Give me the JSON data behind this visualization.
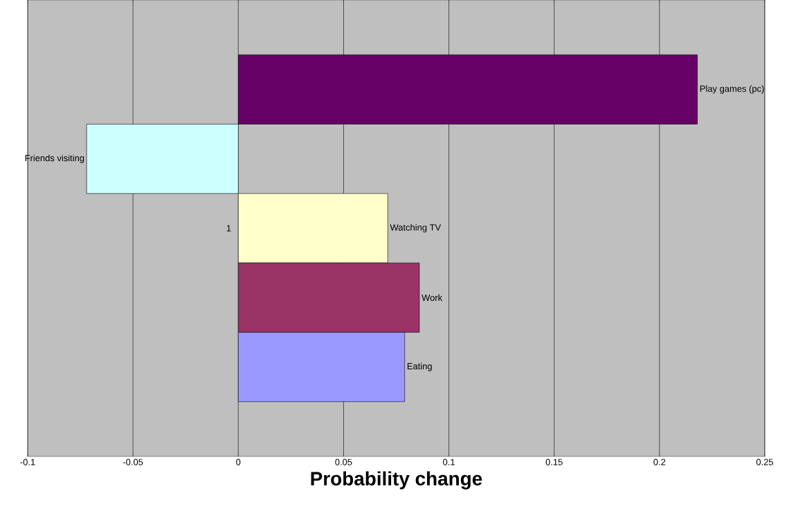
{
  "chart_data": {
    "type": "bar",
    "orientation": "horizontal",
    "xlabel": "Probability change",
    "categories": [
      "1"
    ],
    "series": [
      {
        "name": "Play games (pc)",
        "color": "#660066",
        "values": [
          0.218
        ]
      },
      {
        "name": "Friends visiting",
        "color": "#ccffff",
        "values": [
          -0.072
        ]
      },
      {
        "name": "Watching TV",
        "color": "#ffffcc",
        "values": [
          0.071
        ]
      },
      {
        "name": "Work",
        "color": "#993366",
        "values": [
          0.086
        ]
      },
      {
        "name": "Eating",
        "color": "#9999ff",
        "values": [
          0.079
        ]
      }
    ],
    "xlim": [
      -0.1,
      0.25
    ],
    "xticks": [
      -0.1,
      -0.05,
      0,
      0.05,
      0.1,
      0.15,
      0.2,
      0.25
    ],
    "grid": "x",
    "legend": false
  }
}
